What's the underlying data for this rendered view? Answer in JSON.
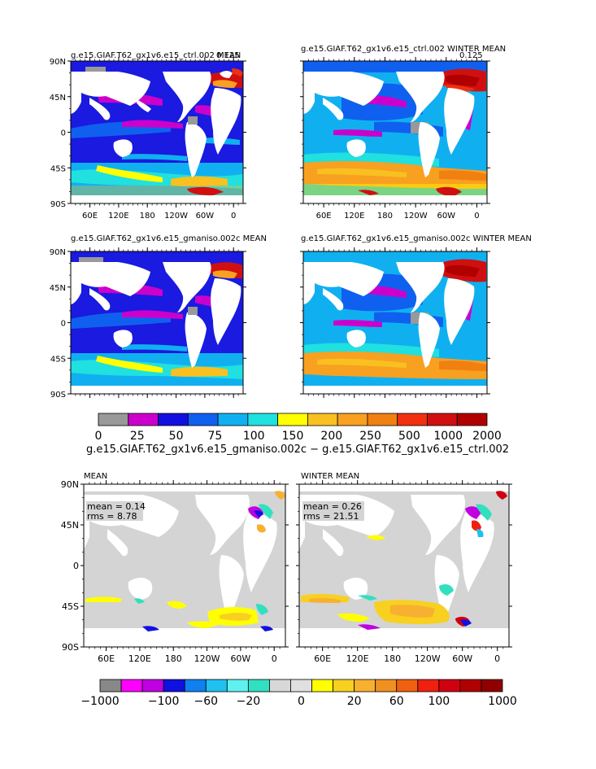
{
  "top_section": {
    "panels": [
      {
        "title": "g.e15.GIAF.T62_gx1v6.e15_ctrl.002 MEAN",
        "corner": "0.125"
      },
      {
        "title": "g.e15.GIAF.T62_gx1v6.e15_ctrl.002 WINTER MEAN",
        "corner": "0.125"
      },
      {
        "title": "g.e15.GIAF.T62_gx1v6.e15_gmaniso.002c MEAN",
        "corner": ""
      },
      {
        "title": "g.e15.GIAF.T62_gx1v6.e15_gmaniso.002c WINTER MEAN",
        "corner": ""
      }
    ],
    "colorbar": {
      "colors": [
        "#999999",
        "#cc00cc",
        "#1010e0",
        "#1060f0",
        "#10b0f0",
        "#20e0e0",
        "#ffff00",
        "#f8c020",
        "#f8a020",
        "#f08010",
        "#f03010",
        "#d01010",
        "#b00000"
      ],
      "labels": [
        "0",
        "25",
        "50",
        "75",
        "100",
        "150",
        "200",
        "250",
        "500",
        "1000",
        "2000"
      ]
    }
  },
  "diff_title": "g.e15.GIAF.T62_gx1v6.e15_gmaniso.002c − g.e15.GIAF.T62_gx1v6.e15_ctrl.002",
  "bottom_section": {
    "panels": [
      {
        "title": "MEAN",
        "mean": "mean = 0.14",
        "rms": "rms = 8.78"
      },
      {
        "title": "WINTER MEAN",
        "mean": "mean = 0.26",
        "rms": "rms = 21.51"
      }
    ],
    "colorbar": {
      "colors": [
        "#888888",
        "#ff00ff",
        "#c000e0",
        "#1010e0",
        "#1080f0",
        "#20c0f0",
        "#60f0f0",
        "#30e0c0",
        "#d8d8d8",
        "#e0e0e0",
        "#ffff00",
        "#f8d020",
        "#f8b030",
        "#f09020",
        "#f06010",
        "#f02010",
        "#d00010",
        "#b00000",
        "#900000"
      ],
      "labels": [
        "−1000",
        "−100",
        "−60",
        "−20",
        "0",
        "20",
        "60",
        "100",
        "1000"
      ]
    }
  },
  "axes": {
    "lat_ticks": [
      "90N",
      "45N",
      "0",
      "45S",
      "90S"
    ],
    "lon_ticks": [
      "60E",
      "120E",
      "180",
      "120W",
      "60W",
      "0"
    ]
  }
}
